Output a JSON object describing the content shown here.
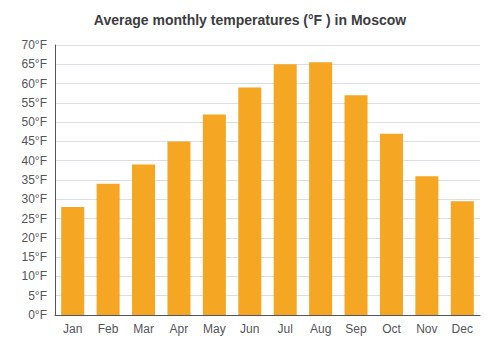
{
  "chart_data": {
    "type": "bar",
    "title": "Average monthly temperatures (°F ) in Moscow",
    "categories": [
      "Jan",
      "Feb",
      "Mar",
      "Apr",
      "May",
      "Jun",
      "Jul",
      "Aug",
      "Sep",
      "Oct",
      "Nov",
      "Dec"
    ],
    "values": [
      28,
      34,
      39,
      45,
      52,
      59,
      65,
      65.5,
      57,
      47,
      36,
      29.5
    ],
    "color": "#F5A623",
    "ylim": [
      0,
      70
    ],
    "yticks": [
      {
        "value": 0,
        "label": "0°F"
      },
      {
        "value": 5,
        "label": "5°F"
      },
      {
        "value": 10,
        "label": "10°F"
      },
      {
        "value": 15,
        "label": "15°F"
      },
      {
        "value": 20,
        "label": "20°F"
      },
      {
        "value": 25,
        "label": "25°F"
      },
      {
        "value": 30,
        "label": "30°F"
      },
      {
        "value": 35,
        "label": "35°F"
      },
      {
        "value": 40,
        "label": "40°F"
      },
      {
        "value": 45,
        "label": "45°F"
      },
      {
        "value": 50,
        "label": "50°F"
      },
      {
        "value": 55,
        "label": "55°F"
      },
      {
        "value": 60,
        "label": "60°F"
      },
      {
        "value": 65,
        "label": "65°F"
      },
      {
        "value": 70,
        "label": "70°F"
      }
    ],
    "grid": true
  }
}
